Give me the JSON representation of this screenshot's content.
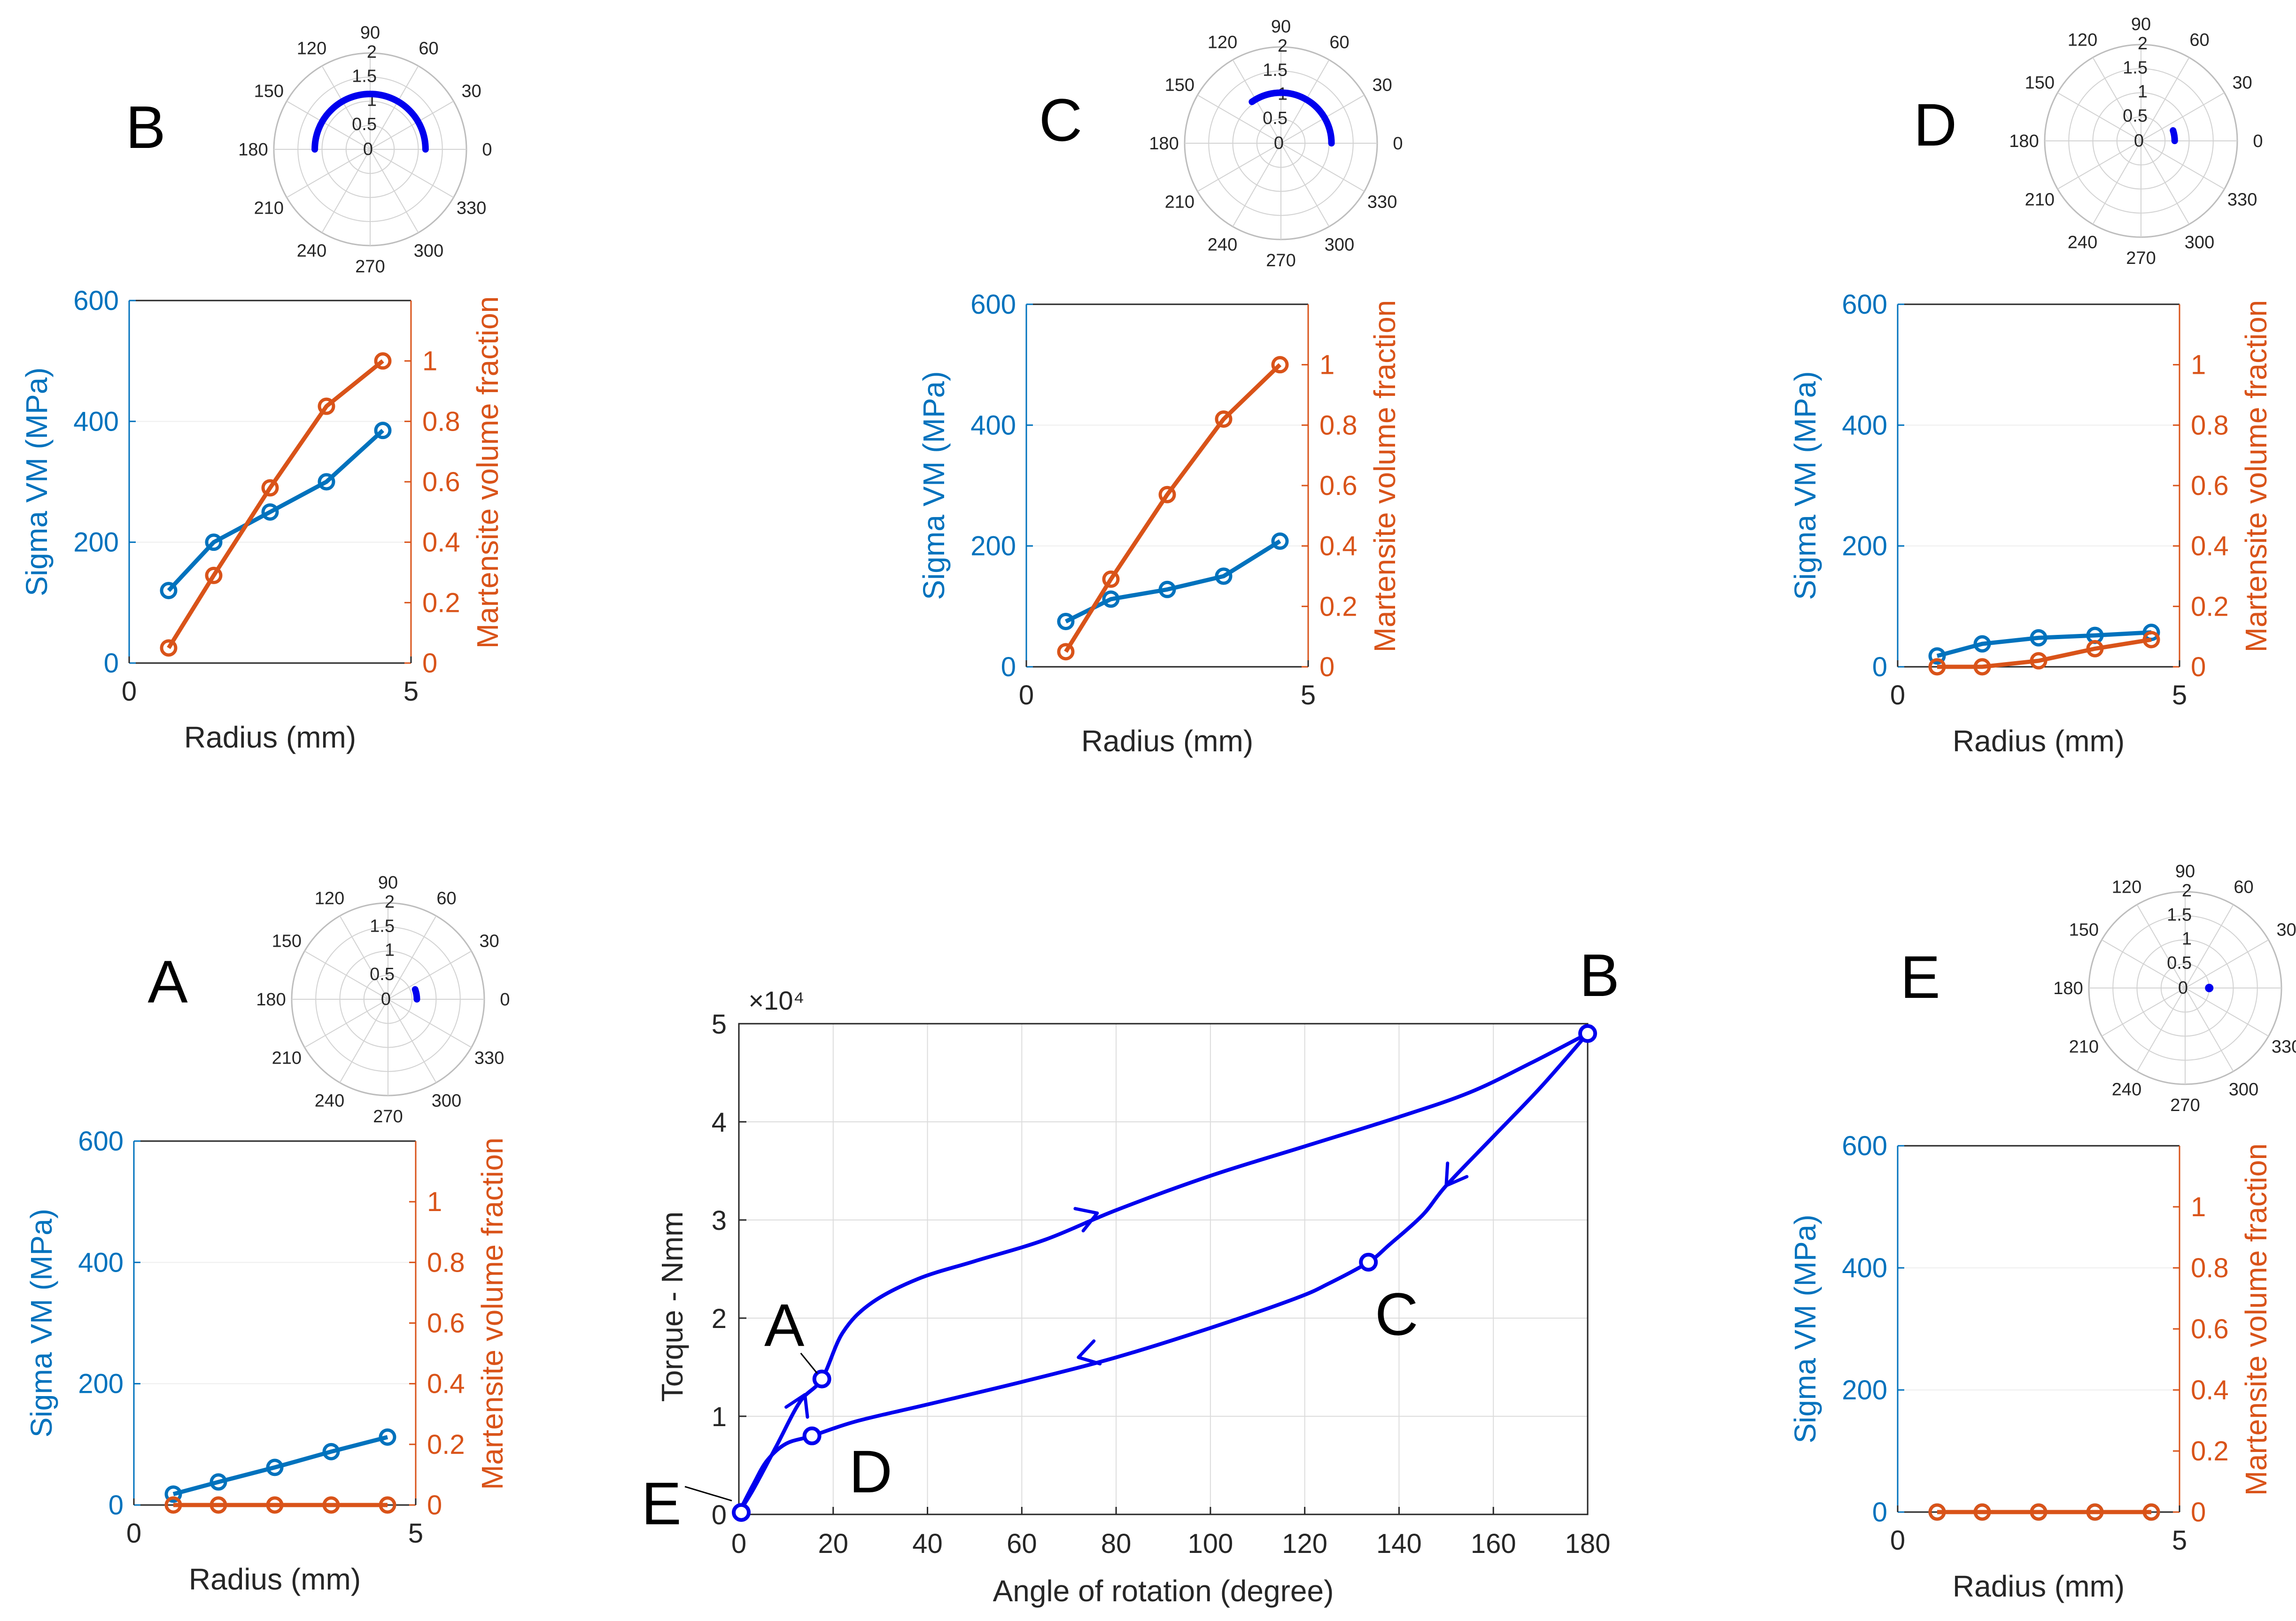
{
  "figure": {
    "colors": {
      "left_axis": "#0072BD",
      "right_axis": "#D95319",
      "loop": "#0000EE",
      "grid": "#dcdcdc",
      "polar_grid": "#d2d2d2",
      "polar_text": "#262626",
      "axis_text": "#262626"
    }
  },
  "chart_data": [
    {
      "id": "B",
      "type": "line",
      "panel_label": "B",
      "xlabel": "Radius (mm)",
      "ylabel_left": "Sigma VM (MPa)",
      "ylabel_right": "Martensite volume fraction",
      "xlim": [
        0,
        5
      ],
      "ylim_left": [
        0,
        600
      ],
      "ylim_right": [
        0,
        1.2
      ],
      "xticks": [
        0,
        5
      ],
      "yticks_left": [
        0,
        200,
        400,
        600
      ],
      "yticks_right": [
        0,
        0.2,
        0.4,
        0.6,
        0.8,
        1
      ],
      "x": [
        0.7,
        1.5,
        2.5,
        3.5,
        4.5
      ],
      "series": [
        {
          "name": "Sigma VM (MPa)",
          "axis": "left",
          "values": [
            120,
            200,
            250,
            300,
            385
          ]
        },
        {
          "name": "Martensite volume fraction",
          "axis": "right",
          "values": [
            0.05,
            0.29,
            0.58,
            0.85,
            1.0
          ]
        }
      ],
      "polar": {
        "theta_ticks": [
          0,
          30,
          60,
          90,
          120,
          150,
          180,
          210,
          240,
          270,
          300,
          330
        ],
        "r_ticks": [
          0,
          0.5,
          1,
          1.5,
          2
        ],
        "rlim": [
          0,
          2
        ],
        "arc": {
          "r": 1.15,
          "theta_start": 0,
          "theta_end": 180
        }
      }
    },
    {
      "id": "C",
      "type": "line",
      "panel_label": "C",
      "xlabel": "Radius (mm)",
      "ylabel_left": "Sigma VM (MPa)",
      "ylabel_right": "Martensite volume fraction",
      "xlim": [
        0,
        5
      ],
      "ylim_left": [
        0,
        600
      ],
      "ylim_right": [
        0,
        1.2
      ],
      "xticks": [
        0,
        5
      ],
      "yticks_left": [
        0,
        200,
        400,
        600
      ],
      "yticks_right": [
        0,
        0.2,
        0.4,
        0.6,
        0.8,
        1
      ],
      "x": [
        0.7,
        1.5,
        2.5,
        3.5,
        4.5
      ],
      "series": [
        {
          "name": "Sigma VM (MPa)",
          "axis": "left",
          "values": [
            75,
            112,
            128,
            150,
            208
          ]
        },
        {
          "name": "Martensite volume fraction",
          "axis": "right",
          "values": [
            0.05,
            0.29,
            0.57,
            0.82,
            1.0
          ]
        }
      ],
      "polar": {
        "theta_ticks": [
          0,
          30,
          60,
          90,
          120,
          150,
          180,
          210,
          240,
          270,
          300,
          330
        ],
        "r_ticks": [
          0,
          0.5,
          1,
          1.5,
          2
        ],
        "rlim": [
          0,
          2
        ],
        "arc": {
          "r": 1.05,
          "theta_start": 0,
          "theta_end": 125
        }
      }
    },
    {
      "id": "D",
      "type": "line",
      "panel_label": "D",
      "xlabel": "Radius (mm)",
      "ylabel_left": "Sigma VM (MPa)",
      "ylabel_right": "Martensite volume fraction",
      "xlim": [
        0,
        5
      ],
      "ylim_left": [
        0,
        600
      ],
      "ylim_right": [
        0,
        1.2
      ],
      "xticks": [
        0,
        5
      ],
      "yticks_left": [
        0,
        200,
        400,
        600
      ],
      "yticks_right": [
        0,
        0.2,
        0.4,
        0.6,
        0.8,
        1
      ],
      "x": [
        0.7,
        1.5,
        2.5,
        3.5,
        4.5
      ],
      "series": [
        {
          "name": "Sigma VM (MPa)",
          "axis": "left",
          "values": [
            18,
            38,
            48,
            52,
            57
          ]
        },
        {
          "name": "Martensite volume fraction",
          "axis": "right",
          "values": [
            0.0,
            0.0,
            0.02,
            0.06,
            0.09
          ]
        }
      ],
      "polar": {
        "theta_ticks": [
          0,
          30,
          60,
          90,
          120,
          150,
          180,
          210,
          240,
          270,
          300,
          330
        ],
        "r_ticks": [
          0,
          0.5,
          1,
          1.5,
          2
        ],
        "rlim": [
          0,
          2
        ],
        "arc": {
          "r": 0.7,
          "theta_start": 0,
          "theta_end": 18
        }
      }
    },
    {
      "id": "A",
      "type": "line",
      "panel_label": "A",
      "xlabel": "Radius (mm)",
      "ylabel_left": "Sigma VM (MPa)",
      "ylabel_right": "Martensite volume fraction",
      "xlim": [
        0,
        5
      ],
      "ylim_left": [
        0,
        600
      ],
      "ylim_right": [
        0,
        1.2
      ],
      "xticks": [
        0,
        5
      ],
      "yticks_left": [
        0,
        200,
        400,
        600
      ],
      "yticks_right": [
        0,
        0.2,
        0.4,
        0.6,
        0.8,
        1
      ],
      "x": [
        0.7,
        1.5,
        2.5,
        3.5,
        4.5
      ],
      "series": [
        {
          "name": "Sigma VM (MPa)",
          "axis": "left",
          "values": [
            18,
            38,
            62,
            88,
            112
          ]
        },
        {
          "name": "Martensite volume fraction",
          "axis": "right",
          "values": [
            0.0,
            0.0,
            0.0,
            0.0,
            0.0
          ]
        }
      ],
      "polar": {
        "theta_ticks": [
          0,
          30,
          60,
          90,
          120,
          150,
          180,
          210,
          240,
          270,
          300,
          330
        ],
        "r_ticks": [
          0,
          0.5,
          1,
          1.5,
          2
        ],
        "rlim": [
          0,
          2
        ],
        "arc": {
          "r": 0.6,
          "theta_start": 0,
          "theta_end": 20
        }
      }
    },
    {
      "id": "E",
      "type": "line",
      "panel_label": "E",
      "xlabel": "Radius (mm)",
      "ylabel_left": "Sigma VM (MPa)",
      "ylabel_right": "Martensite volume fraction",
      "xlim": [
        0,
        5
      ],
      "ylim_left": [
        0,
        600
      ],
      "ylim_right": [
        0,
        1.2
      ],
      "xticks": [
        0,
        5
      ],
      "yticks_left": [
        0,
        200,
        400,
        600
      ],
      "yticks_right": [
        0,
        0.2,
        0.4,
        0.6,
        0.8,
        1
      ],
      "x": [
        0.7,
        1.5,
        2.5,
        3.5,
        4.5
      ],
      "series": [
        {
          "name": "Sigma VM (MPa)",
          "axis": "left",
          "values": [
            0,
            0,
            0,
            0,
            0
          ]
        },
        {
          "name": "Martensite volume fraction",
          "axis": "right",
          "values": [
            0.0,
            0.0,
            0.0,
            0.0,
            0.0
          ]
        }
      ],
      "polar": {
        "theta_ticks": [
          0,
          30,
          60,
          90,
          120,
          150,
          180,
          210,
          240,
          270,
          300,
          330
        ],
        "r_ticks": [
          0,
          0.5,
          1,
          1.5,
          2
        ],
        "rlim": [
          0,
          2
        ],
        "point": {
          "r": 0.5,
          "theta": 0
        }
      }
    },
    {
      "id": "loop",
      "type": "line",
      "xlabel": "Angle of rotation (degree)",
      "ylabel": "Torque - Nmm",
      "exponent_label": "×10⁴",
      "xlim": [
        0,
        180
      ],
      "ylim": [
        0,
        5
      ],
      "xticks": [
        0,
        20,
        40,
        60,
        80,
        100,
        120,
        140,
        160,
        180
      ],
      "yticks": [
        0,
        1,
        2,
        3,
        4,
        5
      ],
      "grid": true,
      "loading_path": {
        "x": [
          0,
          3,
          8,
          13,
          17.6,
          22,
          28,
          38,
          50,
          65,
          80,
          100,
          120,
          140,
          155,
          168,
          180
        ],
        "y": [
          0.02,
          0.25,
          0.7,
          1.15,
          1.38,
          1.85,
          2.15,
          2.4,
          2.58,
          2.8,
          3.1,
          3.45,
          3.75,
          4.05,
          4.3,
          4.6,
          4.9
        ]
      },
      "unloading_path": {
        "x": [
          180,
          170,
          160,
          150,
          145,
          138,
          133.5,
          125,
          118,
          100,
          80,
          60,
          40,
          25,
          15.5,
          10,
          6,
          3,
          0
        ],
        "y": [
          4.9,
          4.35,
          3.85,
          3.35,
          3.05,
          2.75,
          2.57,
          2.35,
          2.2,
          1.9,
          1.6,
          1.35,
          1.12,
          0.95,
          0.8,
          0.72,
          0.55,
          0.3,
          0.02
        ]
      },
      "markers": [
        {
          "label": "E",
          "x": 0.5,
          "y": 0.02
        },
        {
          "label": "A",
          "x": 17.6,
          "y": 1.38
        },
        {
          "label": "D",
          "x": 15.5,
          "y": 0.8
        },
        {
          "label": "C",
          "x": 133.5,
          "y": 2.57
        },
        {
          "label": "B",
          "x": 180,
          "y": 4.9
        }
      ],
      "arrows": [
        {
          "x": 76,
          "y": 3.07,
          "dir_deg": 20
        },
        {
          "x": 150,
          "y": 3.35,
          "dir_deg": 235
        },
        {
          "x": 72,
          "y": 1.6,
          "dir_deg": 195
        },
        {
          "x": 14,
          "y": 1.22,
          "dir_deg": 65
        }
      ]
    }
  ]
}
